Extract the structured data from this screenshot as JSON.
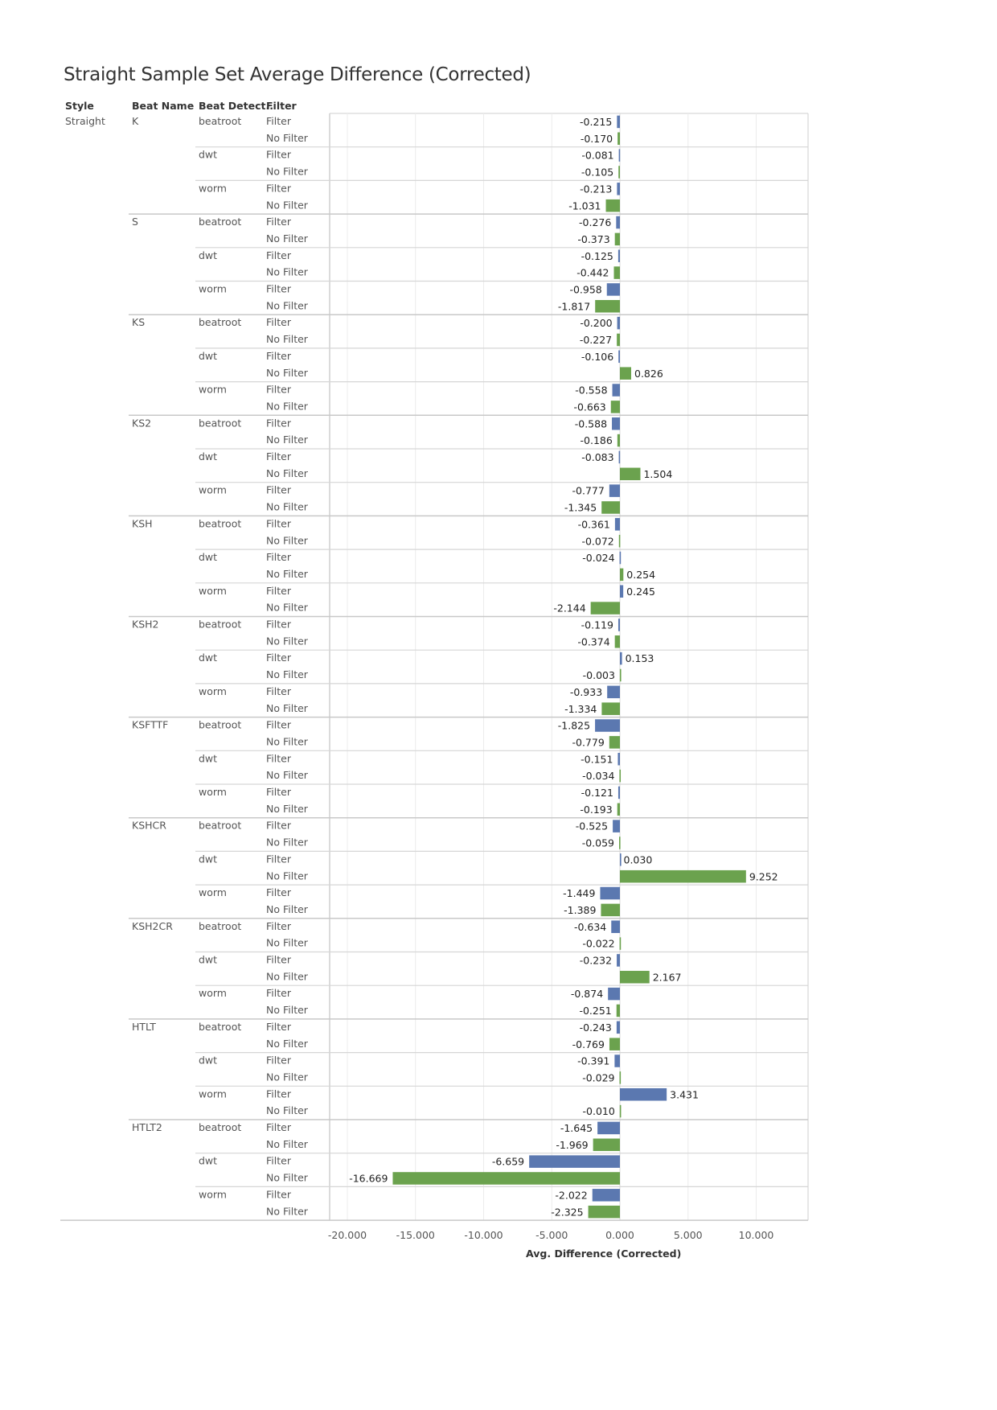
{
  "chart_data": {
    "type": "bar",
    "orientation": "horizontal",
    "title": "Straight Sample Set Average Difference (Corrected)",
    "xlabel": "Avg. Difference (Corrected)",
    "xlim": [
      -21,
      13.5
    ],
    "x_ticks": [
      -20,
      -15,
      -10,
      -5,
      0,
      5,
      10
    ],
    "x_tick_labels": [
      "-20.000",
      "-15.000",
      "-10.000",
      "-5.000",
      "0.000",
      "5.000",
      "10.000"
    ],
    "grid": true,
    "column_headers": [
      "Style",
      "Beat Name",
      "Beat Detect..",
      "Filter"
    ],
    "style": "Straight",
    "detectors": [
      "beatroot",
      "dwt",
      "worm"
    ],
    "filters": [
      "Filter",
      "No Filter"
    ],
    "colors": {
      "Filter": "#5b78b0",
      "No Filter": "#6ba24e"
    },
    "beats": [
      {
        "name": "K",
        "values": [
          [
            -0.215,
            -0.17
          ],
          [
            -0.081,
            -0.105
          ],
          [
            -0.213,
            -1.031
          ]
        ],
        "labels": [
          [
            "-0.215",
            "-0.170"
          ],
          [
            "-0.081",
            "-0.105"
          ],
          [
            "-0.213",
            "-1.031"
          ]
        ]
      },
      {
        "name": "S",
        "values": [
          [
            -0.276,
            -0.373
          ],
          [
            -0.125,
            -0.442
          ],
          [
            -0.958,
            -1.817
          ]
        ],
        "labels": [
          [
            "-0.276",
            "-0.373"
          ],
          [
            "-0.125",
            "-0.442"
          ],
          [
            "-0.958",
            "-1.817"
          ]
        ]
      },
      {
        "name": "KS",
        "values": [
          [
            -0.2,
            -0.227
          ],
          [
            -0.106,
            0.826
          ],
          [
            -0.558,
            -0.663
          ]
        ],
        "labels": [
          [
            "-0.200",
            "-0.227"
          ],
          [
            "-0.106",
            "0.826"
          ],
          [
            "-0.558",
            "-0.663"
          ]
        ]
      },
      {
        "name": "KS2",
        "values": [
          [
            -0.588,
            -0.186
          ],
          [
            -0.083,
            1.504
          ],
          [
            -0.777,
            -1.345
          ]
        ],
        "labels": [
          [
            "-0.588",
            "-0.186"
          ],
          [
            "-0.083",
            "1.504"
          ],
          [
            "-0.777",
            "-1.345"
          ]
        ]
      },
      {
        "name": "KSH",
        "values": [
          [
            -0.361,
            -0.072
          ],
          [
            -0.024,
            0.254
          ],
          [
            0.245,
            -2.144
          ]
        ],
        "labels": [
          [
            "-0.361",
            "-0.072"
          ],
          [
            "-0.024",
            "0.254"
          ],
          [
            "0.245",
            "-2.144"
          ]
        ]
      },
      {
        "name": "KSH2",
        "values": [
          [
            -0.119,
            -0.374
          ],
          [
            0.153,
            -0.003
          ],
          [
            -0.933,
            -1.334
          ]
        ],
        "labels": [
          [
            "-0.119",
            "-0.374"
          ],
          [
            "0.153",
            "-0.003"
          ],
          [
            "-0.933",
            "-1.334"
          ]
        ]
      },
      {
        "name": "KSFTTF",
        "values": [
          [
            -1.825,
            -0.779
          ],
          [
            -0.151,
            -0.034
          ],
          [
            -0.121,
            -0.193
          ]
        ],
        "labels": [
          [
            "-1.825",
            "-0.779"
          ],
          [
            "-0.151",
            "-0.034"
          ],
          [
            "-0.121",
            "-0.193"
          ]
        ]
      },
      {
        "name": "KSHCR",
        "values": [
          [
            -0.525,
            -0.059
          ],
          [
            0.03,
            9.252
          ],
          [
            -1.449,
            -1.389
          ]
        ],
        "labels": [
          [
            "-0.525",
            "-0.059"
          ],
          [
            "0.030",
            "9.252"
          ],
          [
            "-1.449",
            "-1.389"
          ]
        ]
      },
      {
        "name": "KSH2CR",
        "values": [
          [
            -0.634,
            -0.022
          ],
          [
            -0.232,
            2.167
          ],
          [
            -0.874,
            -0.251
          ]
        ],
        "labels": [
          [
            "-0.634",
            "-0.022"
          ],
          [
            "-0.232",
            "2.167"
          ],
          [
            "-0.874",
            "-0.251"
          ]
        ]
      },
      {
        "name": "HTLT",
        "values": [
          [
            -0.243,
            -0.769
          ],
          [
            -0.391,
            -0.029
          ],
          [
            3.431,
            -0.01
          ]
        ],
        "labels": [
          [
            "-0.243",
            "-0.769"
          ],
          [
            "-0.391",
            "-0.029"
          ],
          [
            "3.431",
            "-0.010"
          ]
        ]
      },
      {
        "name": "HTLT2",
        "values": [
          [
            -1.645,
            -1.969
          ],
          [
            -6.659,
            -16.669
          ],
          [
            -2.022,
            -2.325
          ]
        ],
        "labels": [
          [
            "-1.645",
            "-1.969"
          ],
          [
            "-6.659",
            "-16.669"
          ],
          [
            "-2.022",
            "-2.325"
          ]
        ]
      }
    ]
  }
}
